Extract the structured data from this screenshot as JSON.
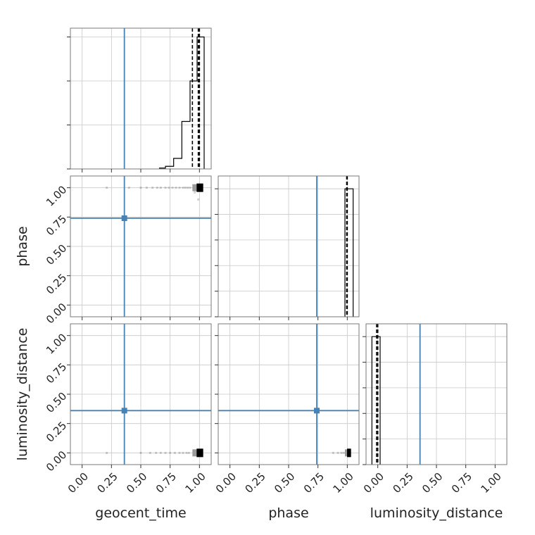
{
  "chart_data": {
    "type": "corner",
    "parameters": [
      "geocent_time",
      "phase",
      "luminosity_distance"
    ],
    "axis_labels": {
      "x": [
        "geocent_time",
        "phase",
        "luminosity_distance"
      ],
      "y": [
        "",
        "phase",
        "luminosity_distance"
      ]
    },
    "tick_labels": [
      "0.00",
      "0.25",
      "0.50",
      "0.75",
      "1.00"
    ],
    "ticks": [
      0,
      0.25,
      0.5,
      0.75,
      1.0
    ],
    "xlim": [
      -0.1,
      1.1
    ],
    "ylim_2d": [
      -0.1,
      1.1
    ],
    "truths": {
      "geocent_time": 0.36,
      "phase": 0.74,
      "luminosity_distance": 0.36
    },
    "truth_color": "#4682b4",
    "grid": true,
    "histograms": [
      {
        "parameter": "geocent_time",
        "bin_edges": [
          0.66,
          0.71,
          0.78,
          0.85,
          0.92,
          0.98,
          1.04
        ],
        "counts": [
          0.01,
          0.03,
          0.12,
          0.54,
          1.0,
          1.5
        ],
        "quantile_lines": [
          0.94,
          0.99,
          1.0
        ],
        "ylim": [
          0,
          1.6
        ]
      },
      {
        "parameter": "phase",
        "bin_edges": [
          0.98,
          1.0,
          1.05
        ],
        "counts": [
          1.0,
          1.0
        ],
        "quantile_lines": [
          0.995,
          1.0
        ],
        "ylim": [
          0,
          1.1
        ]
      },
      {
        "parameter": "luminosity_distance",
        "bin_edges": [
          -0.05,
          -0.02,
          0.02
        ],
        "counts": [
          1.0,
          1.0
        ],
        "quantile_lines": [
          -0.01,
          0.0
        ],
        "ylim": [
          0,
          1.1
        ]
      }
    ],
    "scatter_2d": [
      {
        "x": "geocent_time",
        "y": "phase",
        "points": [
          [
            0.21,
            1.0
          ],
          [
            0.4,
            1.0
          ],
          [
            0.5,
            1.0
          ],
          [
            0.55,
            1.0
          ],
          [
            0.6,
            1.0
          ],
          [
            0.64,
            1.0
          ],
          [
            0.67,
            1.0
          ],
          [
            0.71,
            1.0
          ],
          [
            0.74,
            1.0
          ],
          [
            0.77,
            1.0
          ],
          [
            0.8,
            1.0
          ],
          [
            0.83,
            1.0
          ],
          [
            0.86,
            1.0
          ],
          [
            0.88,
            1.0
          ],
          [
            0.9,
            1.0
          ],
          [
            0.92,
            1.0
          ],
          [
            0.96,
            0.96
          ],
          [
            0.99,
            0.9
          ]
        ],
        "dense_region": {
          "x": [
            0.94,
            1.02
          ],
          "y": [
            0.97,
            1.03
          ]
        }
      },
      {
        "x": "geocent_time",
        "y": "luminosity_distance",
        "points": [
          [
            0.21,
            0.0
          ],
          [
            0.5,
            0.0
          ],
          [
            0.58,
            0.0
          ],
          [
            0.63,
            0.0
          ],
          [
            0.67,
            0.0
          ],
          [
            0.71,
            0.0
          ],
          [
            0.75,
            0.0
          ],
          [
            0.79,
            0.0
          ],
          [
            0.83,
            0.0
          ],
          [
            0.86,
            0.0
          ],
          [
            0.89,
            0.0
          ],
          [
            0.91,
            0.0
          ]
        ],
        "dense_region": {
          "x": [
            0.94,
            1.02
          ],
          "y": [
            -0.03,
            0.03
          ]
        }
      },
      {
        "x": "phase",
        "y": "luminosity_distance",
        "points": [
          [
            0.88,
            0.0
          ],
          [
            0.92,
            0.0
          ],
          [
            0.95,
            0.0
          ],
          [
            0.97,
            0.0
          ]
        ],
        "dense_region": {
          "x": [
            0.98,
            1.02
          ],
          "y": [
            -0.03,
            0.03
          ]
        }
      }
    ]
  }
}
